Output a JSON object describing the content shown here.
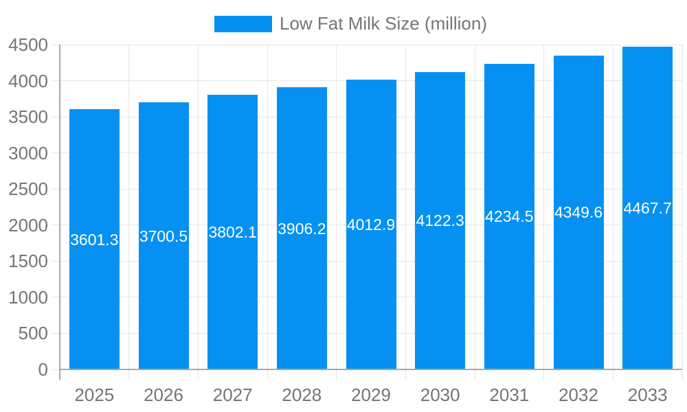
{
  "chart_data": {
    "type": "bar",
    "title": "Low Fat Milk Size (million)",
    "legend_position": "top",
    "categories": [
      "2025",
      "2026",
      "2027",
      "2028",
      "2029",
      "2030",
      "2031",
      "2032",
      "2033"
    ],
    "series": [
      {
        "name": "Low Fat Milk Size (million)",
        "values": [
          3601.3,
          3700.5,
          3802.1,
          3906.2,
          4012.9,
          4122.3,
          4234.5,
          4349.6,
          4467.7
        ]
      }
    ],
    "value_labels": "inside-center",
    "value_label_decimals": 1,
    "xlabel": "",
    "ylabel": "",
    "ylim": [
      0,
      4500
    ],
    "yticks": [
      0,
      500,
      1000,
      1500,
      2000,
      2500,
      3000,
      3500,
      4000,
      4500
    ],
    "grid": true,
    "colors": {
      "bar": "#0691f2",
      "value_label": "#ffffff",
      "axis_text": "#757575",
      "legend_text": "#757575",
      "gridline": "#e6e6e6",
      "axis_line": "#a8a8a8",
      "background": "#ffffff"
    }
  }
}
